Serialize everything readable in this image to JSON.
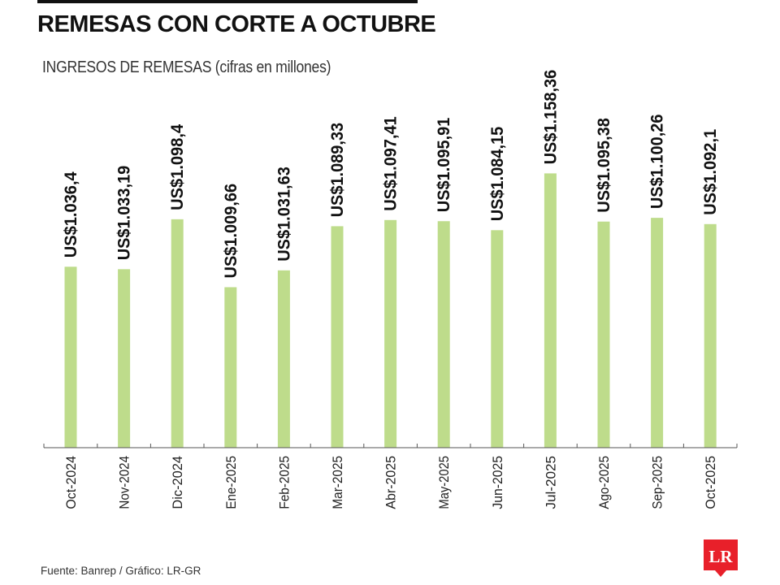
{
  "header": {
    "title": "REMESAS CON CORTE A OCTUBRE",
    "subtitle": "INGRESOS DE REMESAS (cifras en millones)"
  },
  "footer": {
    "source": "Fuente: Banrep / Gráfico: LR-GR",
    "logo_text": "LR"
  },
  "colors": {
    "bar": "#bedc8b",
    "axis": "#555555",
    "logo": "#e8202a",
    "text": "#111111"
  },
  "chart_data": {
    "type": "bar",
    "title": "REMESAS CON CORTE A OCTUBRE",
    "subtitle": "INGRESOS DE REMESAS (cifras en millones)",
    "xlabel": "",
    "ylabel": "",
    "categories": [
      "Oct-2024",
      "Nov-2024",
      "Dic-2024",
      "Ene-2025",
      "Feb-2025",
      "Mar-2025",
      "Abr-2025",
      "May-2025",
      "Jun-2025",
      "Jul-2025",
      "Ago-2025",
      "Sep-2025",
      "Oct-2025"
    ],
    "values": [
      1036.4,
      1033.19,
      1098.4,
      1009.66,
      1031.63,
      1089.33,
      1097.41,
      1095.91,
      1084.15,
      1158.36,
      1095.38,
      1100.26,
      1092.1
    ],
    "labels": [
      "US$1.036,4",
      "US$1.033,19",
      "US$1.098,4",
      "US$1.009,66",
      "US$1.031,63",
      "US$1.089,33",
      "US$1.097,41",
      "US$1.095,91",
      "US$1.084,15",
      "US$1.158,36",
      "US$1.095,38",
      "US$1.100,26",
      "US$1.092,1"
    ],
    "ylim": [
      800,
      1180
    ],
    "grid": false,
    "legend": "none"
  }
}
